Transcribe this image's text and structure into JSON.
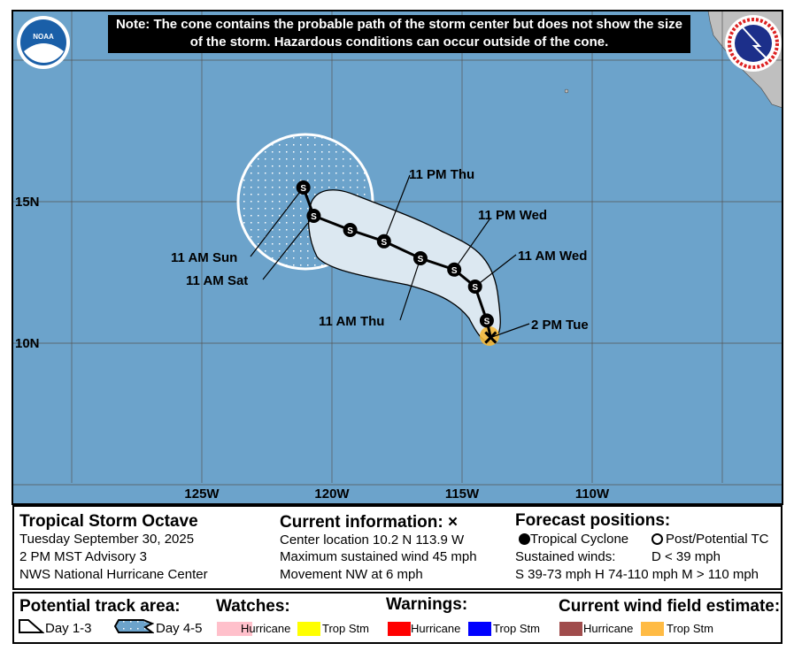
{
  "note": "Note: The cone contains the probable path of the storm center but does not show the size of the storm. Hazardous conditions can occur outside of the cone.",
  "map": {
    "lon_labels": [
      "125W",
      "120W",
      "115W",
      "110W"
    ],
    "lat_labels": [
      "15N",
      "10N"
    ],
    "colors": {
      "ocean": "#6ca3cb",
      "land": "#bfbfbf",
      "cone": "#dce8f1",
      "wind_ts": "#f5b93a"
    },
    "current": {
      "label": "2 PM Tue",
      "lat": 10.2,
      "lon": 113.9
    },
    "track": [
      {
        "lat": 10.8,
        "lon": 114.05,
        "type": "S",
        "label": ""
      },
      {
        "lat": 12.0,
        "lon": 114.5,
        "type": "S",
        "label": "11 AM Wed"
      },
      {
        "lat": 12.6,
        "lon": 115.3,
        "type": "S",
        "label": "11 PM Wed"
      },
      {
        "lat": 13.0,
        "lon": 116.6,
        "type": "S",
        "label": "11 AM Thu"
      },
      {
        "lat": 13.6,
        "lon": 118.0,
        "type": "S",
        "label": "11 PM Thu"
      },
      {
        "lat": 14.0,
        "lon": 119.3,
        "type": "S",
        "label": ""
      },
      {
        "lat": 14.5,
        "lon": 120.7,
        "type": "S",
        "label": "11 AM Sat"
      },
      {
        "lat": 15.5,
        "lon": 121.1,
        "type": "S",
        "label": "11 AM Sun"
      }
    ],
    "logos": {
      "left": "NOAA",
      "right": "NATIONAL WEATHER SERVICE"
    }
  },
  "info": {
    "storm_name": "Tropical Storm Octave",
    "date": "Tuesday September 30, 2025",
    "advisory": "2 PM MST Advisory 3",
    "center": "NWS National Hurricane Center",
    "current_title": "Current information: ×",
    "location": "Center location 10.2 N 113.9 W",
    "wind": "Maximum sustained wind 45 mph",
    "movement": "Movement NW at 6 mph",
    "forecast_title": "Forecast positions:",
    "tc": "Tropical Cyclone",
    "ptc": "Post/Potential TC",
    "sustained": "Sustained winds:",
    "d": "D < 39 mph",
    "categories": "S 39-73 mph  H 74-110 mph  M > 110 mph"
  },
  "legend": {
    "track_title": "Potential track area:",
    "day13": "Day 1-3",
    "day45": "Day 4-5",
    "watches_title": "Watches:",
    "warnings_title": "Warnings:",
    "wind_title": "Current wind field estimate:",
    "hurricane": "Hurricane",
    "tropstm": "Trop Stm",
    "colors": {
      "hur_watch": "#ffc0cb",
      "ts_watch": "#ffff00",
      "hur_warn": "#ff0000",
      "ts_warn": "#0000ff",
      "hur_wind": "#a04c4c",
      "ts_wind": "#ffbb44"
    }
  }
}
